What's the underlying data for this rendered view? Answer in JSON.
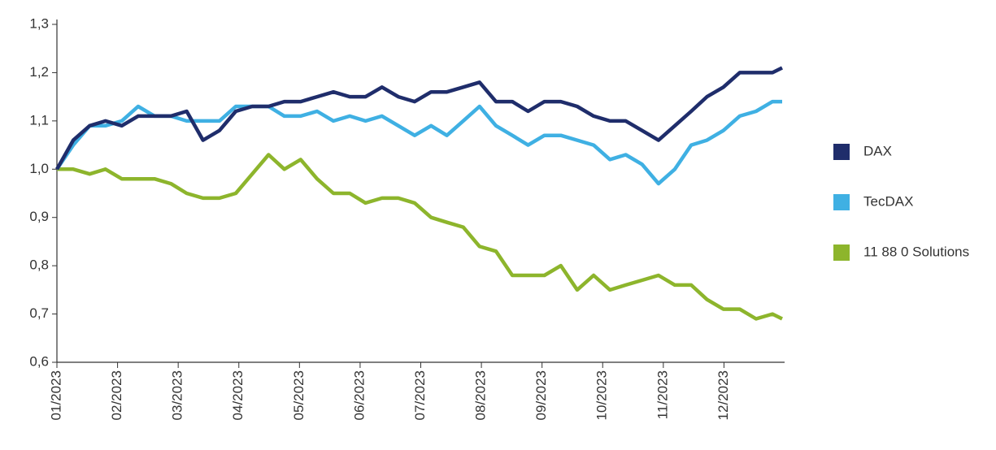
{
  "chart_data": {
    "type": "line",
    "x": [
      0,
      0.27,
      0.54,
      0.8,
      1.07,
      1.34,
      1.61,
      1.88,
      2.14,
      2.41,
      2.68,
      2.95,
      3.22,
      3.49,
      3.75,
      4.02,
      4.29,
      4.56,
      4.83,
      5.09,
      5.36,
      5.63,
      5.9,
      6.17,
      6.43,
      6.7,
      6.97,
      7.24,
      7.51,
      7.77,
      8.04,
      8.31,
      8.58,
      8.85,
      9.12,
      9.38,
      9.65,
      9.92,
      10.19,
      10.46,
      10.72,
      10.99,
      11.26,
      11.53,
      11.8,
      11.96
    ],
    "series": [
      {
        "name": "DAX",
        "color": "#1f2d6b",
        "values": [
          1.0,
          1.06,
          1.09,
          1.1,
          1.09,
          1.11,
          1.11,
          1.11,
          1.12,
          1.06,
          1.08,
          1.12,
          1.13,
          1.13,
          1.14,
          1.14,
          1.15,
          1.16,
          1.15,
          1.15,
          1.17,
          1.15,
          1.14,
          1.16,
          1.16,
          1.17,
          1.18,
          1.14,
          1.14,
          1.12,
          1.14,
          1.14,
          1.13,
          1.11,
          1.1,
          1.1,
          1.08,
          1.06,
          1.09,
          1.12,
          1.15,
          1.17,
          1.2,
          1.2,
          1.2,
          1.21
        ]
      },
      {
        "name": "TecDAX",
        "color": "#3fb0e3",
        "values": [
          1.0,
          1.05,
          1.09,
          1.09,
          1.1,
          1.13,
          1.11,
          1.11,
          1.1,
          1.1,
          1.1,
          1.13,
          1.13,
          1.13,
          1.11,
          1.11,
          1.12,
          1.1,
          1.11,
          1.1,
          1.11,
          1.09,
          1.07,
          1.09,
          1.07,
          1.1,
          1.13,
          1.09,
          1.07,
          1.05,
          1.07,
          1.07,
          1.06,
          1.05,
          1.02,
          1.03,
          1.01,
          0.97,
          1.0,
          1.05,
          1.06,
          1.08,
          1.11,
          1.12,
          1.14,
          1.14
        ]
      },
      {
        "name": "11 88 0 Solutions",
        "color": "#8db52c",
        "values": [
          1.0,
          1.0,
          0.99,
          1.0,
          0.98,
          0.98,
          0.98,
          0.97,
          0.95,
          0.94,
          0.94,
          0.95,
          0.99,
          1.03,
          1.0,
          1.02,
          0.98,
          0.95,
          0.95,
          0.93,
          0.94,
          0.94,
          0.93,
          0.9,
          0.89,
          0.88,
          0.84,
          0.83,
          0.78,
          0.78,
          0.78,
          0.8,
          0.75,
          0.78,
          0.75,
          0.76,
          0.77,
          0.78,
          0.76,
          0.76,
          0.73,
          0.71,
          0.71,
          0.69,
          0.7,
          0.69
        ]
      }
    ],
    "xlim": [
      0,
      12
    ],
    "xticks": [
      {
        "value": 0,
        "label": "01/2023"
      },
      {
        "value": 1,
        "label": "02/2023"
      },
      {
        "value": 2,
        "label": "03/2023"
      },
      {
        "value": 3,
        "label": "04/2023"
      },
      {
        "value": 4,
        "label": "05/2023"
      },
      {
        "value": 5,
        "label": "06/2023"
      },
      {
        "value": 6,
        "label": "07/2023"
      },
      {
        "value": 7,
        "label": "08/2023"
      },
      {
        "value": 8,
        "label": "09/2023"
      },
      {
        "value": 9,
        "label": "10/2023"
      },
      {
        "value": 10,
        "label": "11/2023"
      },
      {
        "value": 11,
        "label": "12/2023"
      }
    ],
    "ylim": [
      0.6,
      1.3
    ],
    "yticks": [
      {
        "value": 0.6,
        "label": "0,6"
      },
      {
        "value": 0.7,
        "label": "0,7"
      },
      {
        "value": 0.8,
        "label": "0,8"
      },
      {
        "value": 0.9,
        "label": "0,9"
      },
      {
        "value": 1.0,
        "label": "1,0"
      },
      {
        "value": 1.1,
        "label": "1,1"
      },
      {
        "value": 1.2,
        "label": "1,2"
      },
      {
        "value": 1.3,
        "label": "1,3"
      }
    ],
    "grid": false,
    "legend": "right"
  }
}
